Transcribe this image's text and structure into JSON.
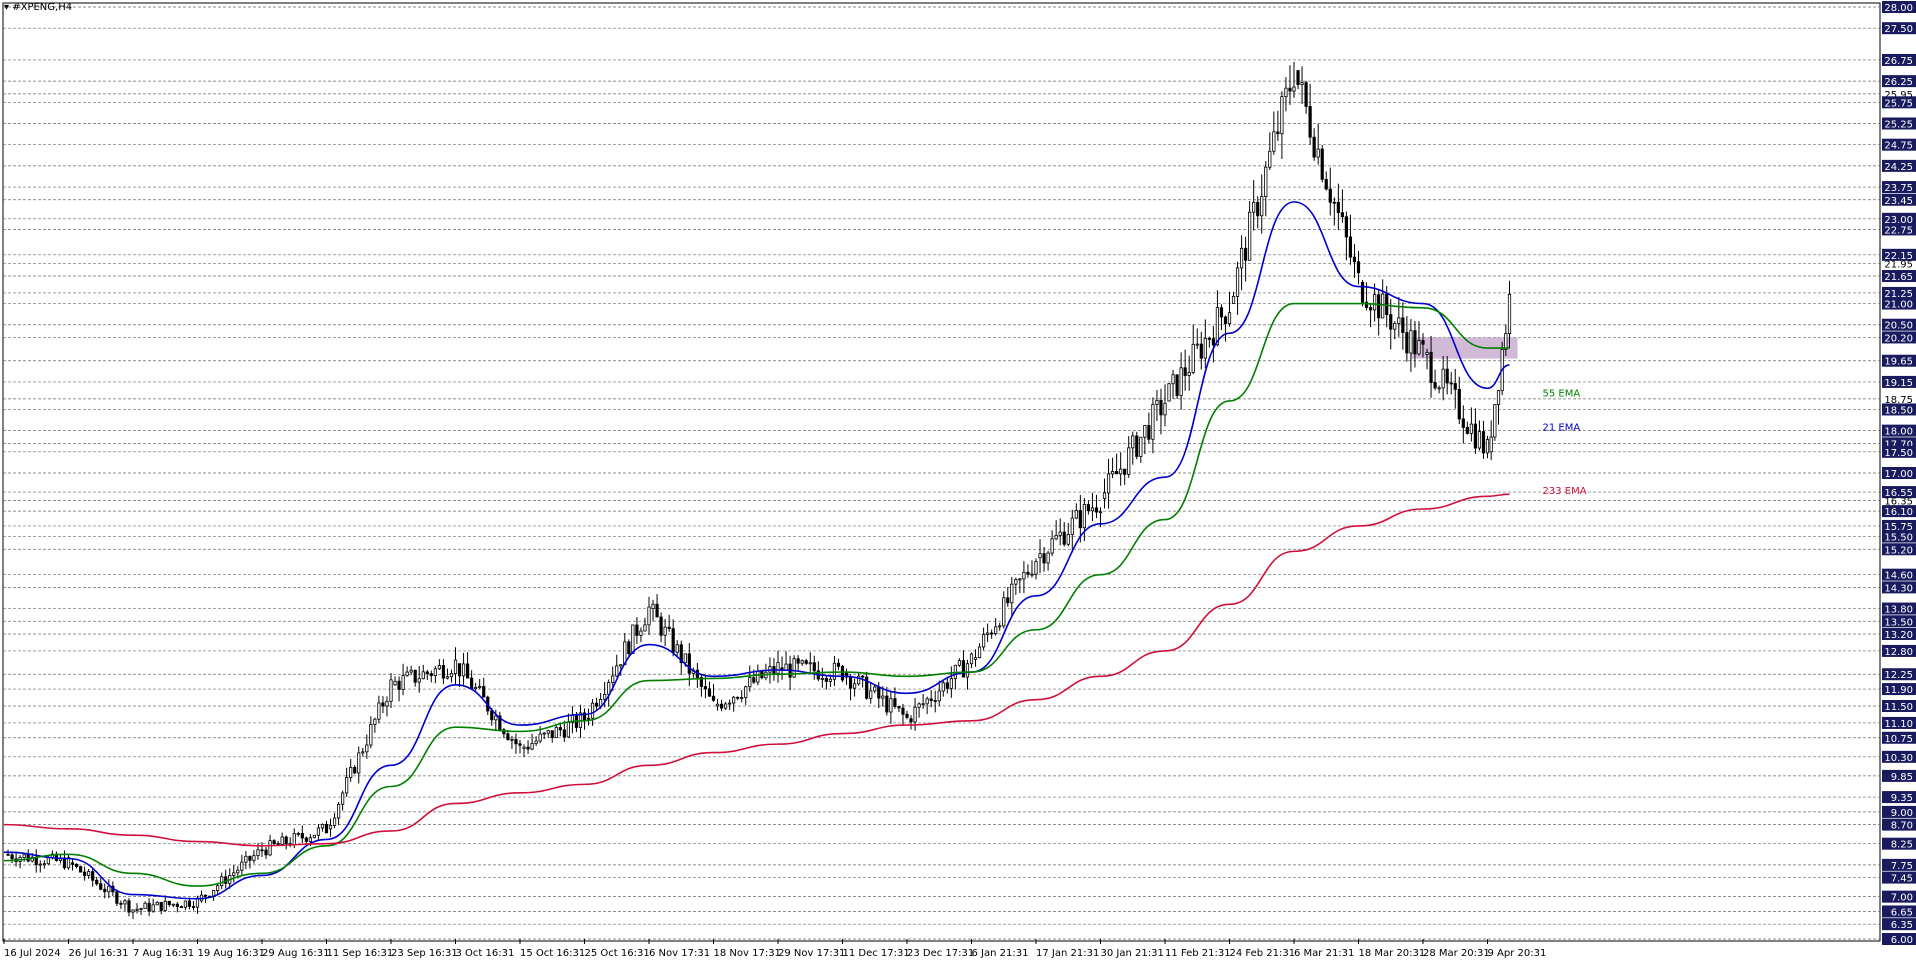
{
  "window": {
    "symbol_title": "#XPENG,H4"
  },
  "chart_data": {
    "type": "candlestick",
    "title": "#XPENG,H4",
    "y_axis": {
      "ylim": [
        6.0,
        28.0
      ],
      "side": "right",
      "tick_labels": [
        "28.00",
        "27.50",
        "26.75",
        "26.25",
        "25.95",
        "25.75",
        "25.25",
        "24.75",
        "24.25",
        "23.75",
        "23.45",
        "23.00",
        "22.75",
        "22.15",
        "21.95",
        "21.65",
        "21.25",
        "21.00",
        "20.50",
        "20.20",
        "19.65",
        "19.15",
        "18.75",
        "18.50",
        "18.00",
        "17.70",
        "17.50",
        "17.00",
        "16.55",
        "16.35",
        "16.10",
        "15.75",
        "15.50",
        "15.20",
        "14.60",
        "14.30",
        "13.80",
        "13.50",
        "13.20",
        "12.80",
        "12.25",
        "11.90",
        "11.50",
        "11.10",
        "10.75",
        "10.30",
        "9.85",
        "9.35",
        "9.00",
        "8.70",
        "8.25",
        "7.75",
        "7.45",
        "7.00",
        "6.65",
        "6.35",
        "6.00"
      ],
      "highlighted_labels": [
        "28.00",
        "27.50",
        "26.75",
        "26.25",
        "25.75",
        "25.25",
        "24.75",
        "24.25",
        "23.75",
        "23.45",
        "23.00",
        "22.75",
        "22.15",
        "21.65",
        "21.25",
        "21.00",
        "20.50",
        "20.20",
        "19.65",
        "19.15",
        "18.50",
        "18.00",
        "17.70",
        "17.50",
        "17.00",
        "16.55",
        "16.10",
        "15.75",
        "15.50",
        "15.20",
        "14.60",
        "14.30",
        "13.80",
        "13.50",
        "13.20",
        "12.80",
        "12.25",
        "11.90",
        "11.50",
        "11.10",
        "10.75",
        "10.30",
        "9.85",
        "9.35",
        "9.00",
        "8.70",
        "8.25",
        "7.75",
        "7.45",
        "7.00",
        "6.65",
        "6.35",
        "6.00"
      ]
    },
    "x_axis": {
      "tick_labels": [
        "16 Jul 2024",
        "26 Jul 16:31",
        "7 Aug 16:31",
        "19 Aug 16:31",
        "29 Aug 16:31",
        "11 Sep 16:31",
        "23 Sep 16:31",
        "3 Oct 16:31",
        "15 Oct 16:31",
        "25 Oct 16:31",
        "6 Nov 17:31",
        "18 Nov 17:31",
        "29 Nov 17:31",
        "11 Dec 17:31",
        "23 Dec 17:31",
        "6 Jan 21:31",
        "17 Jan 21:31",
        "30 Jan 21:31",
        "11 Feb 21:31",
        "24 Feb 21:31",
        "6 Mar 21:31",
        "18 Mar 20:31",
        "28 Mar 20:31",
        "9 Apr 20:31"
      ]
    },
    "grid": true,
    "price_path": [
      [
        "16 Jul 2024",
        8.0
      ],
      [
        "26 Jul 16:31",
        7.8
      ],
      [
        "7 Aug 16:31",
        6.7
      ],
      [
        "19 Aug 16:31",
        6.9
      ],
      [
        "29 Aug 16:31",
        8.1
      ],
      [
        "11 Sep 16:31",
        8.6
      ],
      [
        "23 Sep 16:31",
        12.0
      ],
      [
        "3 Oct 16:31",
        12.5
      ],
      [
        "15 Oct 16:31",
        10.5
      ],
      [
        "25 Oct 16:31",
        11.2
      ],
      [
        "6 Nov 17:31",
        13.8
      ],
      [
        "18 Nov 17:31",
        11.5
      ],
      [
        "29 Nov 17:31",
        12.4
      ],
      [
        "11 Dec 17:31",
        12.3
      ],
      [
        "23 Dec 17:31",
        11.2
      ],
      [
        "6 Jan 21:31",
        12.6
      ],
      [
        "17 Jan 21:31",
        15.0
      ],
      [
        "30 Jan 21:31",
        16.4
      ],
      [
        "11 Feb 21:31",
        18.7
      ],
      [
        "24 Feb 21:31",
        21.0
      ],
      [
        "6 Mar 21:31",
        26.5
      ],
      [
        "18 Mar 20:31",
        21.5
      ],
      [
        "28 Mar 20:31",
        19.8
      ],
      [
        "9 Apr 20:31",
        17.5
      ],
      [
        "9 Apr 20:31",
        21.1
      ]
    ],
    "series": [
      {
        "name": "21 EMA",
        "color": "#0000cc",
        "points": [
          [
            "16 Jul 2024",
            8.05
          ],
          [
            "26 Jul 16:31",
            7.9
          ],
          [
            "7 Aug 16:31",
            7.05
          ],
          [
            "19 Aug 16:31",
            6.95
          ],
          [
            "29 Aug 16:31",
            7.5
          ],
          [
            "11 Sep 16:31",
            8.35
          ],
          [
            "23 Sep 16:31",
            10.1
          ],
          [
            "3 Oct 16:31",
            12.0
          ],
          [
            "15 Oct 16:31",
            11.05
          ],
          [
            "25 Oct 16:31",
            11.3
          ],
          [
            "6 Nov 17:31",
            12.95
          ],
          [
            "18 Nov 17:31",
            12.2
          ],
          [
            "29 Nov 17:31",
            12.35
          ],
          [
            "11 Dec 17:31",
            12.2
          ],
          [
            "23 Dec 17:31",
            11.8
          ],
          [
            "6 Jan 21:31",
            12.3
          ],
          [
            "17 Jan 21:31",
            14.1
          ],
          [
            "30 Jan 21:31",
            15.8
          ],
          [
            "11 Feb 21:31",
            16.9
          ],
          [
            "24 Feb 21:31",
            20.3
          ],
          [
            "6 Mar 21:31",
            23.4
          ],
          [
            "18 Mar 20:31",
            21.4
          ],
          [
            "28 Mar 20:31",
            21.0
          ],
          [
            "9 Apr 20:31",
            19.0
          ],
          [
            "9 Apr 20:31",
            19.55
          ]
        ]
      },
      {
        "name": "55 EMA",
        "color": "#008000",
        "points": [
          [
            "16 Jul 2024",
            7.85
          ],
          [
            "26 Jul 16:31",
            8.0
          ],
          [
            "7 Aug 16:31",
            7.55
          ],
          [
            "19 Aug 16:31",
            7.25
          ],
          [
            "29 Aug 16:31",
            7.55
          ],
          [
            "11 Sep 16:31",
            8.2
          ],
          [
            "23 Sep 16:31",
            9.6
          ],
          [
            "3 Oct 16:31",
            11.0
          ],
          [
            "15 Oct 16:31",
            10.9
          ],
          [
            "25 Oct 16:31",
            11.15
          ],
          [
            "6 Nov 17:31",
            12.1
          ],
          [
            "18 Nov 17:31",
            12.15
          ],
          [
            "29 Nov 17:31",
            12.25
          ],
          [
            "11 Dec 17:31",
            12.3
          ],
          [
            "23 Dec 17:31",
            12.2
          ],
          [
            "6 Jan 21:31",
            12.3
          ],
          [
            "17 Jan 21:31",
            13.3
          ],
          [
            "30 Jan 21:31",
            14.6
          ],
          [
            "11 Feb 21:31",
            15.9
          ],
          [
            "24 Feb 21:31",
            18.7
          ],
          [
            "6 Mar 21:31",
            21.0
          ],
          [
            "18 Mar 20:31",
            21.0
          ],
          [
            "28 Mar 20:31",
            20.9
          ],
          [
            "9 Apr 20:31",
            19.95
          ],
          [
            "9 Apr 20:31",
            19.95
          ]
        ]
      },
      {
        "name": "233 EMA",
        "color": "#d0103a",
        "points": [
          [
            "16 Jul 2024",
            8.7
          ],
          [
            "26 Jul 16:31",
            8.6
          ],
          [
            "7 Aug 16:31",
            8.45
          ],
          [
            "19 Aug 16:31",
            8.3
          ],
          [
            "29 Aug 16:31",
            8.2
          ],
          [
            "11 Sep 16:31",
            8.25
          ],
          [
            "23 Sep 16:31",
            8.55
          ],
          [
            "3 Oct 16:31",
            9.2
          ],
          [
            "15 Oct 16:31",
            9.45
          ],
          [
            "25 Oct 16:31",
            9.65
          ],
          [
            "6 Nov 17:31",
            10.1
          ],
          [
            "18 Nov 17:31",
            10.4
          ],
          [
            "29 Nov 17:31",
            10.6
          ],
          [
            "11 Dec 17:31",
            10.85
          ],
          [
            "23 Dec 17:31",
            11.05
          ],
          [
            "6 Jan 21:31",
            11.15
          ],
          [
            "17 Jan 21:31",
            11.65
          ],
          [
            "30 Jan 21:31",
            12.2
          ],
          [
            "11 Feb 21:31",
            12.8
          ],
          [
            "24 Feb 21:31",
            13.9
          ],
          [
            "6 Mar 21:31",
            15.15
          ],
          [
            "18 Mar 20:31",
            15.75
          ],
          [
            "28 Mar 20:31",
            16.15
          ],
          [
            "9 Apr 20:31",
            16.45
          ],
          [
            "9 Apr 20:31",
            16.5
          ]
        ]
      }
    ],
    "annotations": [
      {
        "text": "55 EMA",
        "color": "#008000",
        "near_value": 18.9
      },
      {
        "text": "21 EMA",
        "color": "#0000cc",
        "near_value": 18.1
      },
      {
        "text": "233 EMA",
        "color": "#d0103a",
        "near_value": 16.6
      }
    ],
    "zone": {
      "y_range": [
        19.7,
        20.2
      ],
      "color": "#c9aed0",
      "from_label": "28 Mar 20:31",
      "to_label": "9 Apr 20:31"
    }
  }
}
